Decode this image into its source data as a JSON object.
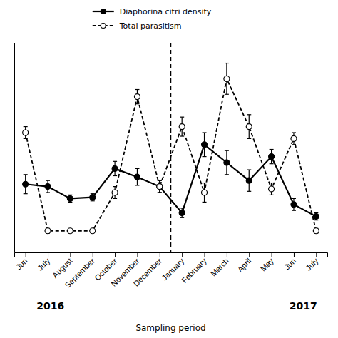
{
  "chart_data": {
    "type": "line",
    "categories": [
      "Jun",
      "July",
      "August",
      "September",
      "October",
      "November",
      "December",
      "January",
      "February",
      "March",
      "April",
      "May",
      "Jun",
      "July"
    ],
    "series": [
      {
        "name": "Diaphorina citri density",
        "color": "#000000",
        "marker": "circle",
        "line_style": "solid",
        "values": [
          4.2,
          4.0,
          3.0,
          3.1,
          5.5,
          4.8,
          4.0,
          1.8,
          7.5,
          6.0,
          4.5,
          6.5,
          2.5,
          1.5
        ],
        "errors": [
          0.8,
          0.5,
          0.3,
          0.3,
          0.6,
          0.7,
          0.5,
          0.4,
          1.0,
          1.0,
          0.9,
          0.6,
          0.5,
          0.3
        ]
      },
      {
        "name": "Total parasitism",
        "color": "#000000",
        "marker": "open-circle",
        "line_style": "dashed",
        "values": [
          8.5,
          0.3,
          0.3,
          0.3,
          3.5,
          11.5,
          4.0,
          9.0,
          3.5,
          13.0,
          9.0,
          3.8,
          8.0,
          0.3
        ],
        "errors": [
          0.5,
          0.2,
          0.1,
          0.1,
          0.5,
          0.6,
          0.5,
          0.8,
          0.8,
          1.3,
          1.0,
          0.5,
          0.5,
          0.2
        ]
      }
    ],
    "vline": 6.5,
    "annotations": [
      "2016",
      "2017"
    ],
    "x_label": "Sampling period",
    "ylim": [
      -1.5,
      16
    ],
    "tick_labels": "x",
    "grid": false,
    "legend": "top"
  }
}
